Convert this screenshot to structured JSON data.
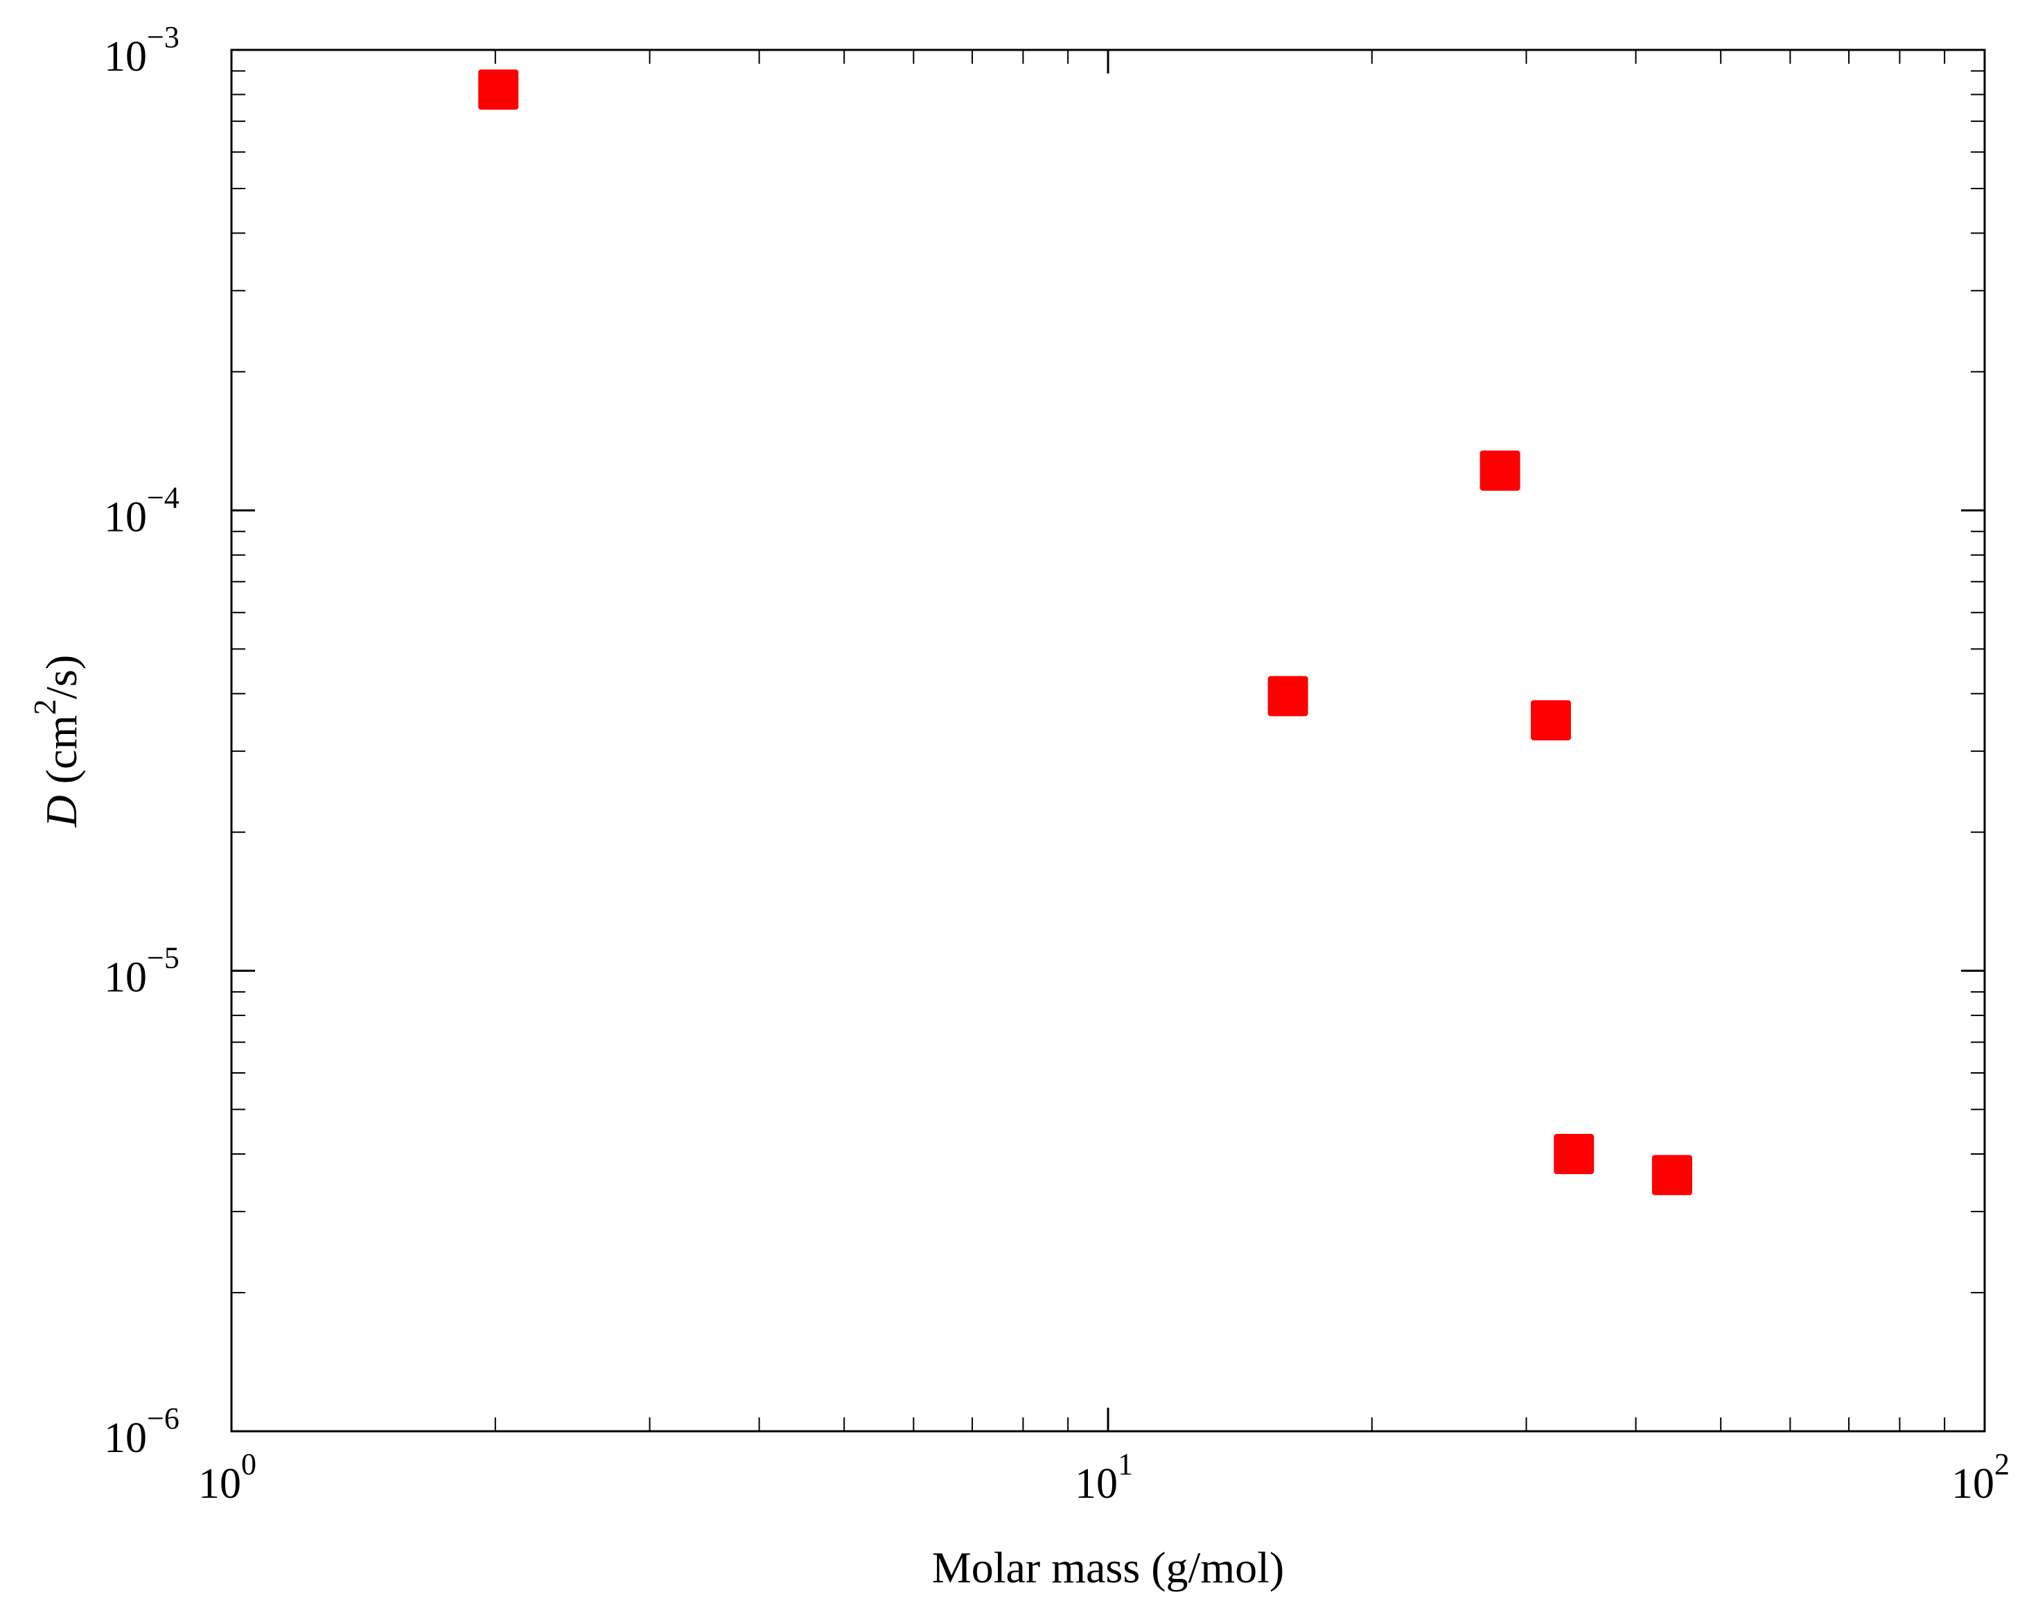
{
  "chart_data": {
    "type": "scatter",
    "xlabel": "Molar mass (g/mol)",
    "ylabel": {
      "variable": "D",
      "unit_open": " (cm",
      "unit_power": "2",
      "unit_close": "/s)"
    },
    "xscale": "log",
    "yscale": "log",
    "xlim": [
      1,
      100
    ],
    "ylim": [
      1e-06,
      0.001
    ],
    "x_ticks": [
      {
        "base": "10",
        "exp": "0",
        "value": 1
      },
      {
        "base": "10",
        "exp": "1",
        "value": 10
      },
      {
        "base": "10",
        "exp": "2",
        "value": 100
      }
    ],
    "y_ticks": [
      {
        "base": "10",
        "exp": "−6",
        "value": 1e-06
      },
      {
        "base": "10",
        "exp": "−5",
        "value": 1e-05
      },
      {
        "base": "10",
        "exp": "−4",
        "value": 0.0001
      },
      {
        "base": "10",
        "exp": "−3",
        "value": 0.001
      }
    ],
    "grid": false,
    "marker": "square",
    "marker_color": "#ff0000",
    "points": [
      {
        "x": 2.016,
        "y": 0.00082
      },
      {
        "x": 16.04,
        "y": 3.95e-05
      },
      {
        "x": 28.0,
        "y": 0.000122
      },
      {
        "x": 32.0,
        "y": 3.5e-05
      },
      {
        "x": 34.0,
        "y": 4e-06
      },
      {
        "x": 44.0,
        "y": 3.6e-06
      }
    ]
  }
}
